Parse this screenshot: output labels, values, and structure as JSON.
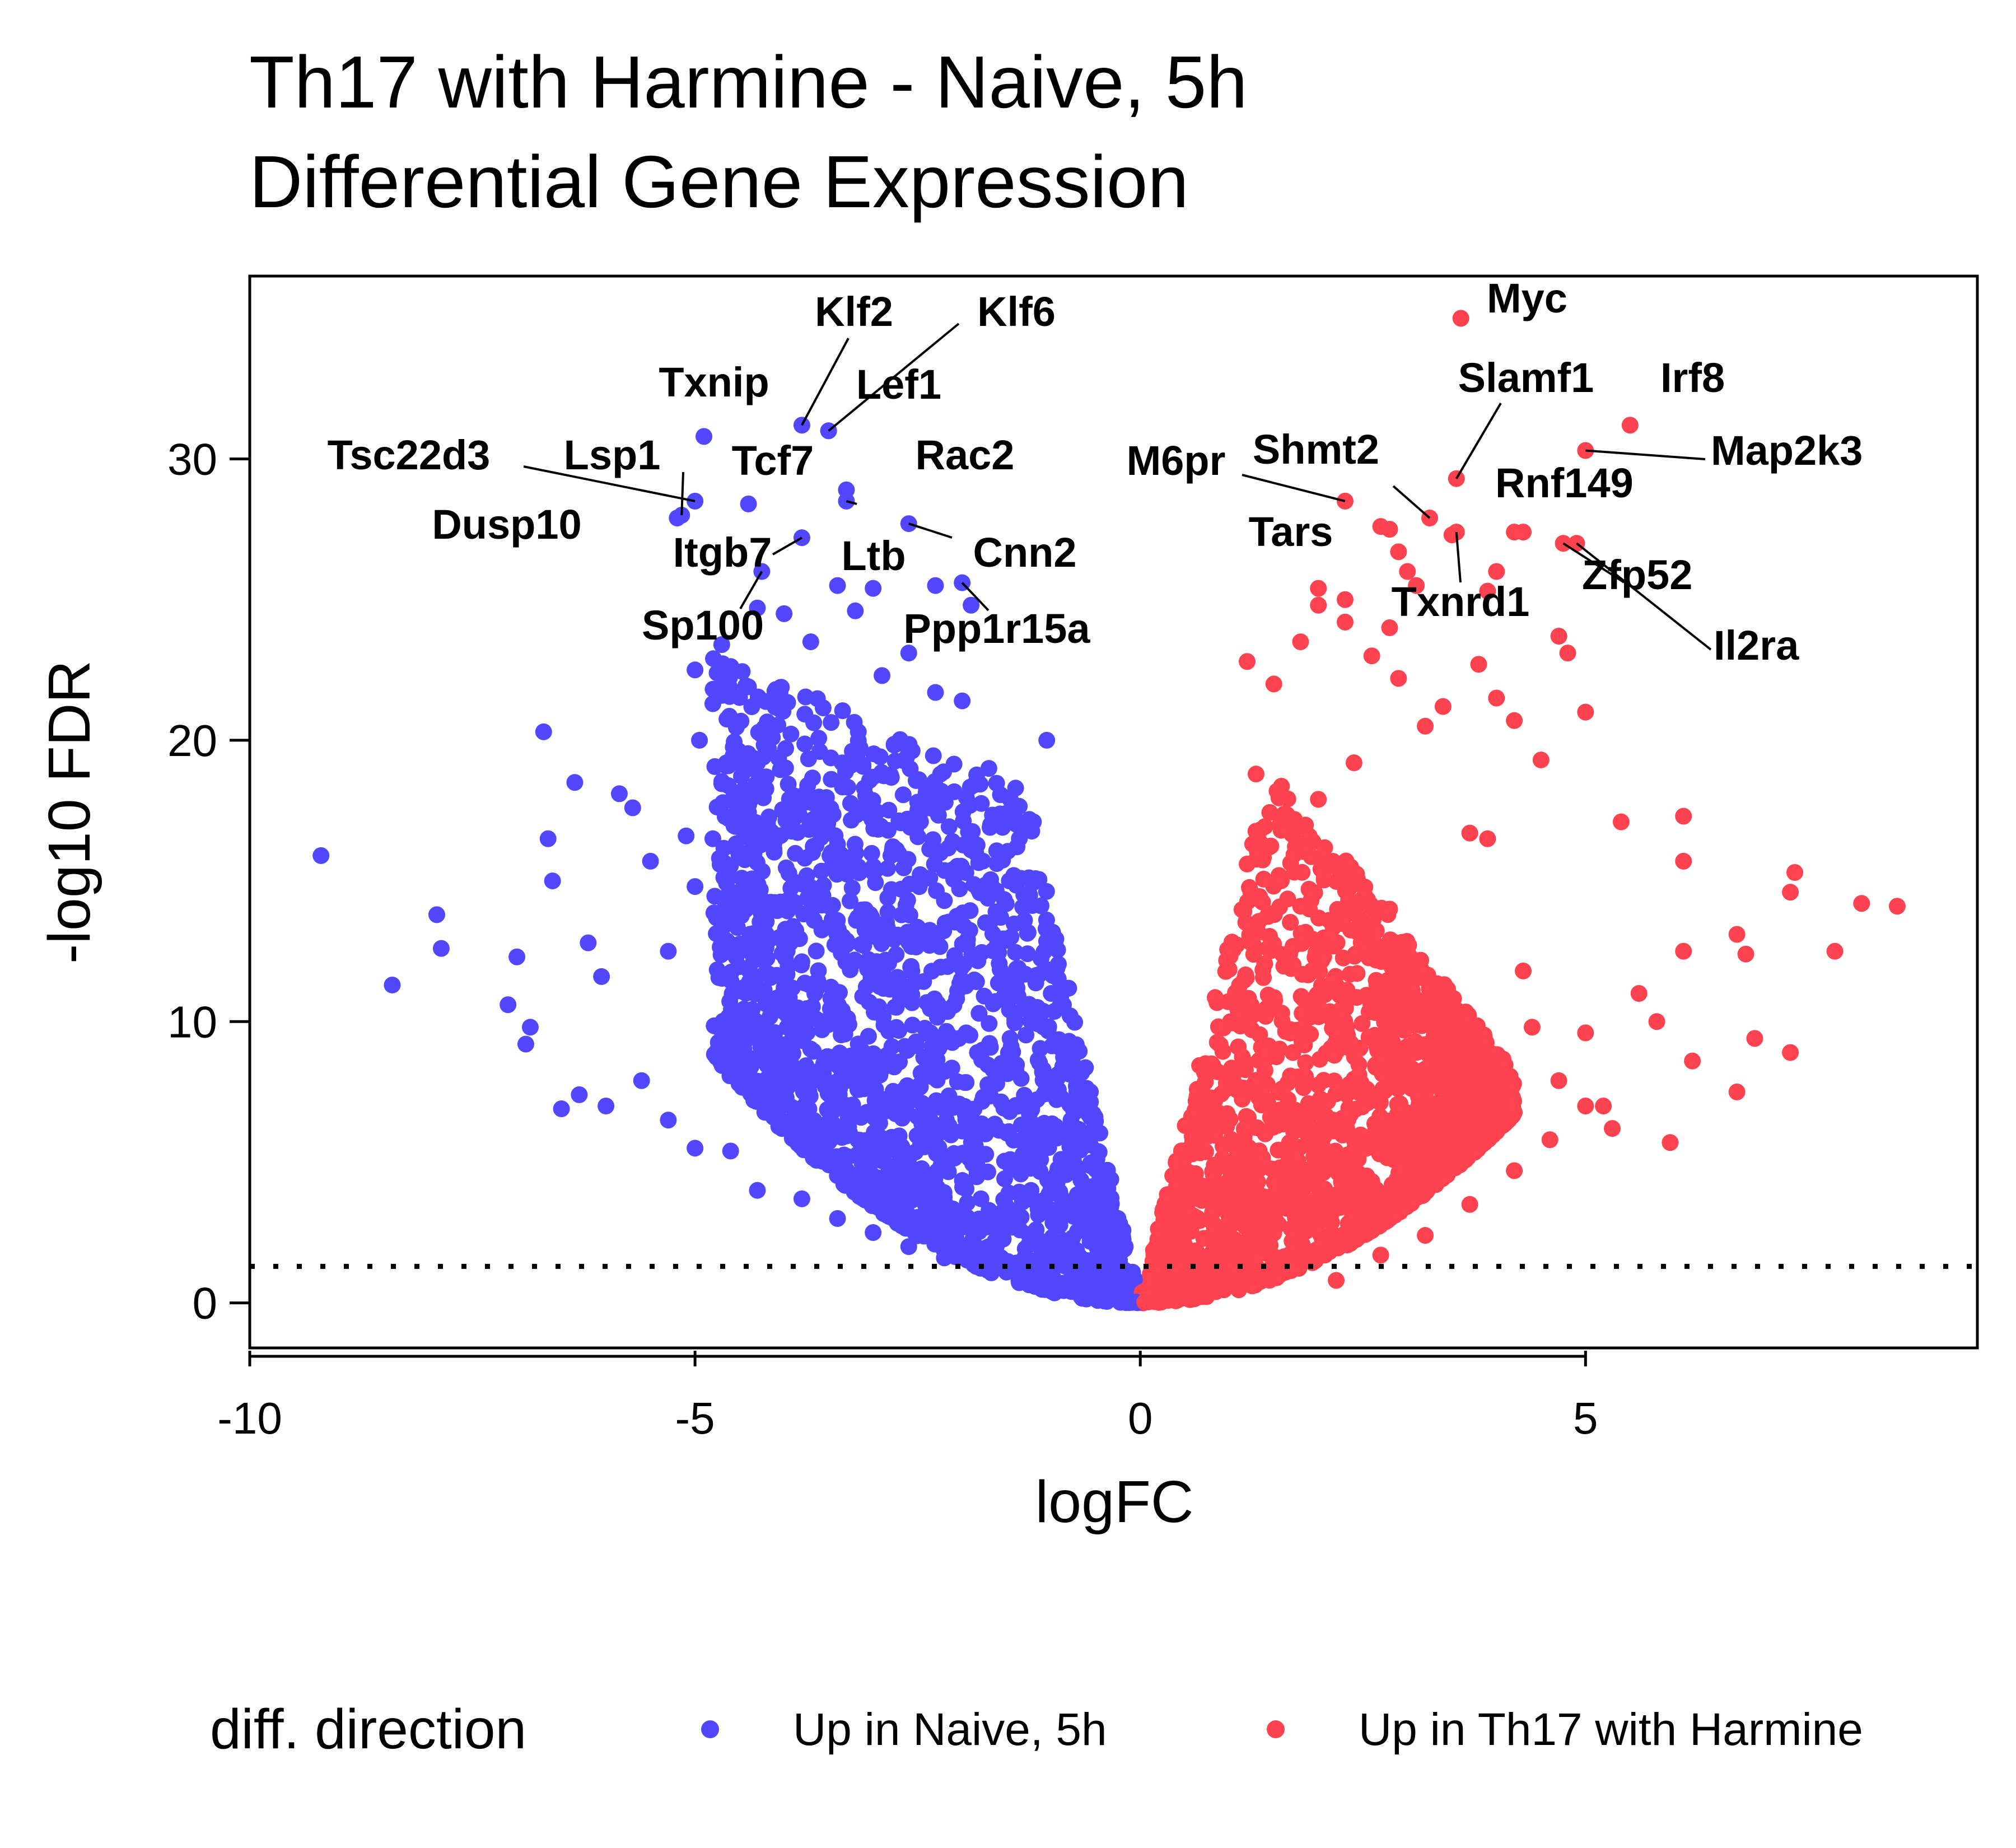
{
  "chart_data": {
    "type": "scatter",
    "title": "Th17 with Harmine - Naive, 5h",
    "subtitle": "Differential Gene Expression",
    "xlabel": "logFC",
    "ylabel": "-log10 FDR",
    "xlim": [
      -10,
      9.4
    ],
    "ylim": [
      -1.6,
      36.5
    ],
    "xticks": [
      -10,
      -5,
      0,
      5
    ],
    "xtick_labels": [
      "-10",
      "-5",
      "0",
      "5"
    ],
    "yticks": [
      0,
      10,
      20,
      30
    ],
    "ytick_labels": [
      "0",
      "10",
      "20",
      "30"
    ],
    "threshold_line": {
      "y": 1.3,
      "style": "dotted"
    },
    "grid": false,
    "legend": {
      "title": "diff. direction",
      "position": "bottom",
      "entries": [
        {
          "label": "Up in Naive, 5h",
          "color": "#5147FF"
        },
        {
          "label": "Up in Th17 with Harmine",
          "color": "#FF424F"
        }
      ]
    },
    "series": [
      {
        "name": "Up in Naive, 5h",
        "color": "#5147FF",
        "points": [
          [
            -9.2,
            15.9
          ],
          [
            -8.4,
            11.3
          ],
          [
            -7.9,
            13.8
          ],
          [
            -7.85,
            12.6
          ],
          [
            -7.1,
            10.6
          ],
          [
            -7.0,
            12.3
          ],
          [
            -6.85,
            9.8
          ],
          [
            -6.7,
            20.3
          ],
          [
            -6.65,
            16.5
          ],
          [
            -6.6,
            15.0
          ],
          [
            -6.35,
            18.5
          ],
          [
            -6.2,
            12.8
          ],
          [
            -6.05,
            11.6
          ],
          [
            -5.85,
            18.1
          ],
          [
            -5.7,
            17.6
          ],
          [
            -5.5,
            15.7
          ],
          [
            -5.3,
            12.5
          ],
          [
            -5.1,
            16.6
          ],
          [
            -5.0,
            14.8
          ],
          [
            -4.95,
            20.0
          ],
          [
            -4.8,
            16.5
          ],
          [
            -4.5,
            14.1
          ],
          [
            -4.2,
            12.8
          ],
          [
            -4.0,
            11.2
          ],
          [
            -3.8,
            10.3
          ],
          [
            -6.9,
            9.2
          ],
          [
            -6.5,
            6.9
          ],
          [
            -6.3,
            7.4
          ],
          [
            -6.0,
            7.0
          ],
          [
            -5.6,
            7.9
          ],
          [
            -5.3,
            6.5
          ],
          [
            -5.0,
            5.5
          ],
          [
            -4.6,
            5.4
          ],
          [
            -4.3,
            4.0
          ],
          [
            -3.8,
            3.7
          ],
          [
            -3.4,
            3.0
          ],
          [
            -3.0,
            2.5
          ],
          [
            -2.6,
            2.0
          ],
          [
            -2.2,
            1.6
          ],
          [
            -1.7,
            1.3
          ],
          [
            -1.2,
            0.9
          ],
          [
            -0.7,
            0.5
          ],
          [
            -0.3,
            0.2
          ],
          [
            -0.05,
            0.03
          ],
          [
            -5.0,
            22.5
          ],
          [
            -4.8,
            21.3
          ],
          [
            -4.4,
            21.9
          ],
          [
            -4.2,
            18.7
          ],
          [
            -3.9,
            17.4
          ],
          [
            -3.6,
            19.6
          ],
          [
            -3.4,
            16.3
          ],
          [
            -3.1,
            18.3
          ],
          [
            -2.8,
            15.9
          ],
          [
            -2.5,
            17.8
          ],
          [
            -2.2,
            14.3
          ],
          [
            -1.9,
            16.1
          ],
          [
            -1.6,
            12.9
          ],
          [
            -1.3,
            13.6
          ],
          [
            -1.05,
            20.0
          ],
          [
            -1.0,
            11.0
          ],
          [
            -0.8,
            9.3
          ],
          [
            -0.6,
            6.8
          ],
          [
            -0.4,
            4.4
          ],
          [
            -0.2,
            2.1
          ],
          [
            -4.0,
            24.5
          ],
          [
            -3.7,
            23.5
          ],
          [
            -3.2,
            24.6
          ],
          [
            -2.9,
            22.3
          ],
          [
            -2.6,
            23.1
          ],
          [
            -2.3,
            21.7
          ],
          [
            -2.0,
            21.4
          ],
          [
            -1.7,
            19.0
          ],
          [
            -1.4,
            18.3
          ],
          [
            -1.2,
            17.1
          ],
          [
            -3.0,
            25.4
          ],
          [
            -2.3,
            25.5
          ],
          [
            -1.9,
            24.8
          ],
          [
            -3.4,
            25.5
          ],
          [
            -4.3,
            24.7
          ],
          [
            -4.7,
            23.4
          ]
        ],
        "labeled_points": [
          {
            "gene": "Klf2",
            "x": -3.8,
            "y": 31.2
          },
          {
            "gene": "Klf6",
            "x": -3.5,
            "y": 31.0
          },
          {
            "gene": "Lef1",
            "x": -3.5,
            "y": 31.0
          },
          {
            "gene": "Txnip",
            "x": -4.9,
            "y": 30.8
          },
          {
            "gene": "Tsc22d3",
            "x": -5.0,
            "y": 28.5
          },
          {
            "gene": "Lsp1",
            "x": -5.15,
            "y": 28.0
          },
          {
            "gene": "Tcf7",
            "x": -4.4,
            "y": 28.4
          },
          {
            "gene": "Rac2",
            "x": -3.3,
            "y": 28.9
          },
          {
            "gene": "Dusp10",
            "x": -5.2,
            "y": 27.9
          },
          {
            "gene": "Itgb7",
            "x": -3.8,
            "y": 27.2
          },
          {
            "gene": "Ltb",
            "x": -3.3,
            "y": 28.5
          },
          {
            "gene": "Cnn2",
            "x": -2.6,
            "y": 27.7
          },
          {
            "gene": "Sp100",
            "x": -4.25,
            "y": 26.0
          },
          {
            "gene": "Ppp1r15a",
            "x": -2.0,
            "y": 25.6
          }
        ]
      },
      {
        "name": "Up in Th17 with Harmine",
        "color": "#FF424F",
        "points": [
          [
            0.05,
            0.03
          ],
          [
            0.3,
            0.2
          ],
          [
            0.7,
            0.5
          ],
          [
            1.2,
            0.9
          ],
          [
            1.7,
            1.3
          ],
          [
            2.2,
            0.8
          ],
          [
            2.7,
            1.7
          ],
          [
            3.2,
            2.4
          ],
          [
            3.7,
            3.5
          ],
          [
            4.2,
            4.7
          ],
          [
            4.6,
            5.8
          ],
          [
            5.0,
            7.0
          ],
          [
            5.3,
            6.2
          ],
          [
            0.8,
            8.5
          ],
          [
            1.0,
            12.4
          ],
          [
            1.2,
            15.6
          ],
          [
            1.3,
            18.8
          ],
          [
            1.6,
            16.9
          ],
          [
            1.8,
            14.1
          ],
          [
            2.0,
            17.9
          ],
          [
            2.2,
            15.5
          ],
          [
            2.4,
            19.2
          ],
          [
            2.6,
            12.9
          ],
          [
            2.8,
            14.0
          ],
          [
            3.0,
            11.3
          ],
          [
            3.3,
            9.5
          ],
          [
            3.6,
            8.0
          ],
          [
            1.2,
            22.8
          ],
          [
            1.5,
            22.0
          ],
          [
            1.8,
            23.5
          ],
          [
            2.0,
            24.8
          ],
          [
            2.3,
            24.2
          ],
          [
            2.6,
            23.0
          ],
          [
            2.9,
            22.2
          ],
          [
            3.2,
            20.5
          ],
          [
            3.4,
            21.2
          ],
          [
            3.8,
            22.7
          ],
          [
            4.0,
            21.5
          ],
          [
            4.2,
            20.7
          ],
          [
            4.5,
            19.3
          ],
          [
            3.7,
            16.7
          ],
          [
            3.9,
            16.5
          ],
          [
            4.3,
            11.8
          ],
          [
            4.4,
            9.8
          ],
          [
            4.7,
            7.9
          ],
          [
            5.0,
            9.6
          ],
          [
            5.2,
            7.0
          ],
          [
            5.6,
            11.0
          ],
          [
            5.8,
            10.0
          ],
          [
            5.95,
            5.7
          ],
          [
            6.1,
            17.3
          ],
          [
            6.1,
            15.7
          ],
          [
            6.1,
            12.5
          ],
          [
            6.2,
            8.6
          ],
          [
            6.7,
            13.1
          ],
          [
            6.7,
            7.5
          ],
          [
            6.8,
            12.4
          ],
          [
            6.9,
            9.4
          ],
          [
            7.3,
            14.6
          ],
          [
            7.3,
            8.9
          ],
          [
            7.35,
            15.3
          ],
          [
            7.8,
            12.5
          ],
          [
            8.1,
            14.2
          ],
          [
            8.5,
            14.1
          ],
          [
            5.4,
            17.1
          ],
          [
            5.0,
            21.0
          ],
          [
            4.8,
            23.1
          ],
          [
            4.7,
            23.7
          ],
          [
            3.5,
            27.3
          ],
          [
            4.0,
            26.0
          ],
          [
            2.7,
            27.6
          ],
          [
            2.9,
            26.7
          ],
          [
            3.0,
            26.0
          ],
          [
            3.1,
            25.5
          ],
          [
            2.8,
            24.0
          ],
          [
            2.0,
            25.4
          ],
          [
            2.3,
            25.0
          ],
          [
            3.9,
            25.3
          ],
          [
            4.2,
            27.4
          ],
          [
            3.8,
            6.5
          ],
          [
            3.0,
            5.7
          ],
          [
            2.0,
            4.1
          ]
        ],
        "labeled_points": [
          {
            "gene": "Myc",
            "x": 3.6,
            "y": 35.0
          },
          {
            "gene": "Irf8",
            "x": 5.5,
            "y": 31.2
          },
          {
            "gene": "Slamf1",
            "x": 3.55,
            "y": 29.3
          },
          {
            "gene": "Map2k3",
            "x": 5.0,
            "y": 30.3
          },
          {
            "gene": "M6pr",
            "x": 2.3,
            "y": 28.5
          },
          {
            "gene": "Shmt2",
            "x": 3.25,
            "y": 27.9
          },
          {
            "gene": "Rnf149",
            "x": 4.3,
            "y": 27.4
          },
          {
            "gene": "Tars",
            "x": 2.8,
            "y": 27.5
          },
          {
            "gene": "Zfp52",
            "x": 4.75,
            "y": 27.0
          },
          {
            "gene": "Txnrd1",
            "x": 3.55,
            "y": 27.4
          },
          {
            "gene": "Il2ra",
            "x": 4.9,
            "y": 27.0
          }
        ]
      }
    ]
  }
}
